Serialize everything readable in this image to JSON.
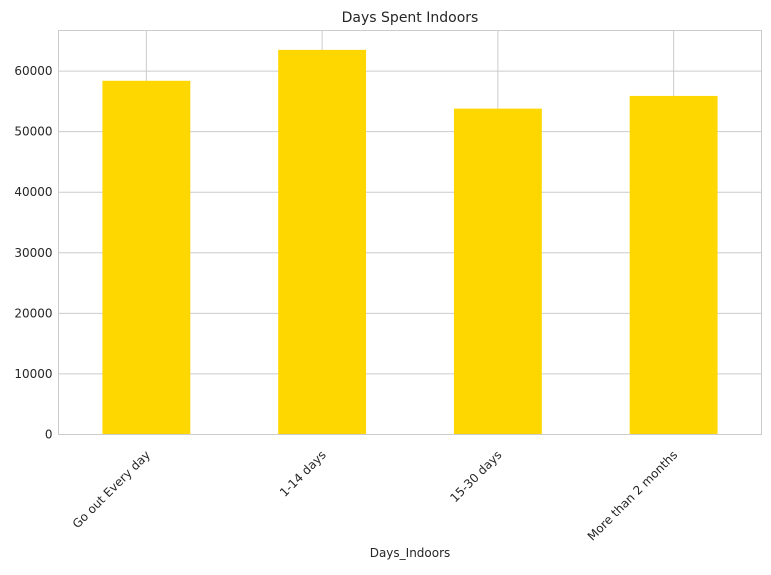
{
  "chart_data": {
    "type": "bar",
    "title": "Days Spent Indoors",
    "xlabel": "Days_Indoors",
    "ylabel": "",
    "categories": [
      "Go out Every day",
      "1-14 days",
      "15-30 days",
      "More than 2 months"
    ],
    "values": [
      58400,
      63500,
      53800,
      55900
    ],
    "ylim": [
      0,
      66700
    ],
    "yticks": [
      0,
      10000,
      20000,
      30000,
      40000,
      50000,
      60000
    ],
    "ytick_labels": [
      "0",
      "10000",
      "20000",
      "30000",
      "40000",
      "50000",
      "60000"
    ],
    "grid": true,
    "legend": "none",
    "colors": {
      "bar": "#FFD700",
      "grid": "#cccccc",
      "axes": "#cccccc",
      "text": "#262626"
    }
  }
}
